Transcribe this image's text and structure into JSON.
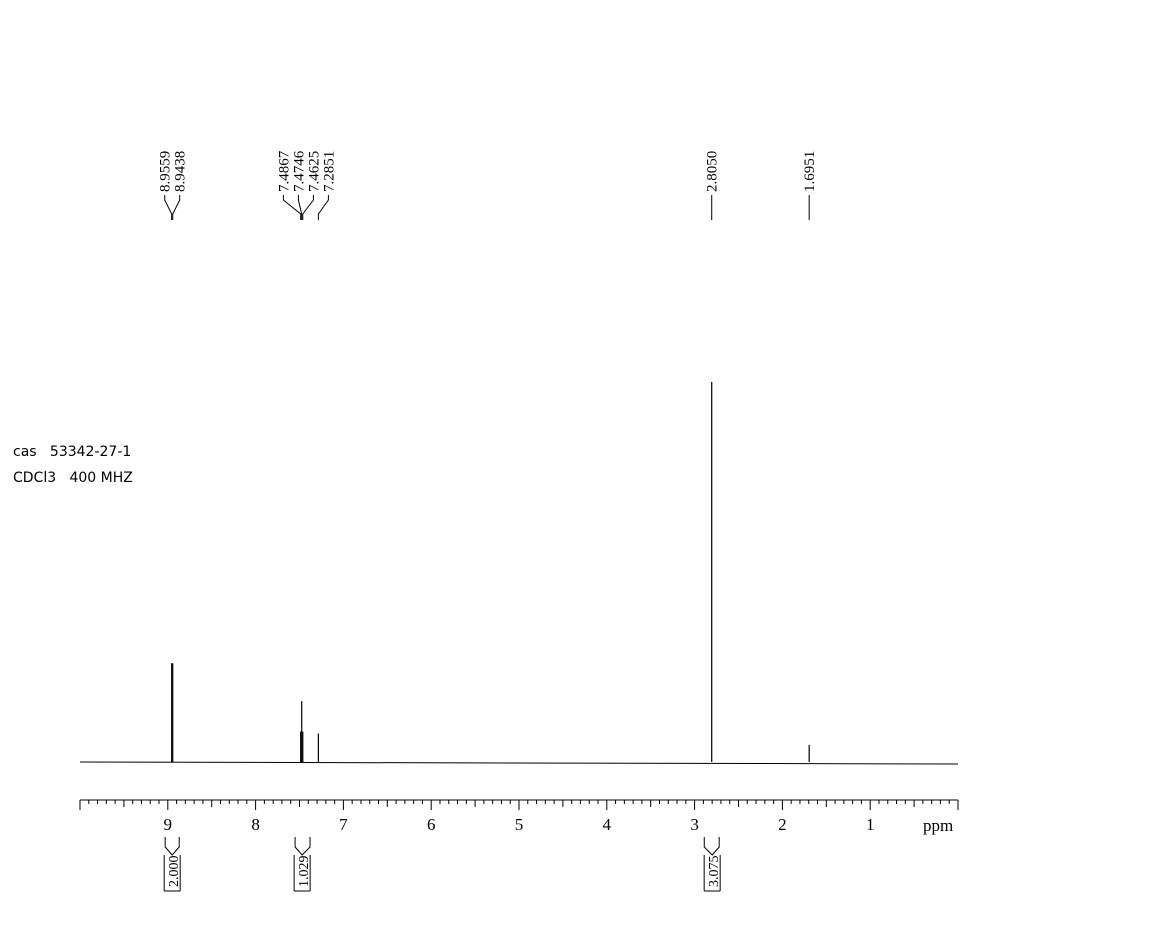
{
  "sample_info": {
    "cas_line": "cas   53342-27-1",
    "solvent_line": "CDCl3   400 MHZ"
  },
  "chart_data": {
    "type": "line",
    "title": "",
    "xlabel": "ppm",
    "ylabel": "",
    "x_reversed": true,
    "xlim": [
      10.0,
      0.0
    ],
    "x_ticks": [
      9,
      8,
      7,
      6,
      5,
      4,
      3,
      2,
      1
    ],
    "x_tick_labels": [
      "9",
      "8",
      "7",
      "6",
      "5",
      "4",
      "3",
      "2",
      "1"
    ],
    "peak_labels": [
      "8.9559",
      "8.9438",
      "7.4867",
      "7.4746",
      "7.4625",
      "7.2851",
      "2.8050",
      "1.6951"
    ],
    "peaks": [
      {
        "ppm": 8.9559,
        "intensity": 0.26
      },
      {
        "ppm": 8.9438,
        "intensity": 0.26
      },
      {
        "ppm": 7.4867,
        "intensity": 0.08
      },
      {
        "ppm": 7.4746,
        "intensity": 0.16
      },
      {
        "ppm": 7.4625,
        "intensity": 0.08
      },
      {
        "ppm": 7.2851,
        "intensity": 0.075
      },
      {
        "ppm": 2.805,
        "intensity": 1.0
      },
      {
        "ppm": 1.6951,
        "intensity": 0.045
      }
    ],
    "integrals": [
      {
        "center": 8.95,
        "from": 9.03,
        "to": 8.87,
        "label": "2.000"
      },
      {
        "center": 7.47,
        "from": 7.55,
        "to": 7.38,
        "label": "1.029"
      },
      {
        "center": 2.8,
        "from": 2.89,
        "to": 2.72,
        "label": "3.075"
      }
    ],
    "baseline_intensity": 0.0
  }
}
